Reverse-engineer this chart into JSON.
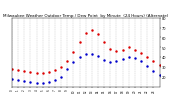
{
  "title": "Milwaukee Weather Outdoor Temp / Dew Point  by Minute  (24 Hours) (Alternate)",
  "title_fontsize": 3.0,
  "bg_color": "#ffffff",
  "plot_bg": "#ffffff",
  "grid_color": "#aaaaaa",
  "temp_color": "#dd0000",
  "dew_color": "#0000cc",
  "ylim": [
    10,
    80
  ],
  "xlim": [
    0,
    1440
  ],
  "yticks": [
    20,
    30,
    40,
    50,
    60,
    70,
    80
  ],
  "ytick_labels": [
    "20",
    "30",
    "40",
    "50",
    "60",
    "70",
    "80"
  ],
  "xtick_hours": [
    0,
    1,
    2,
    3,
    4,
    5,
    6,
    7,
    8,
    9,
    10,
    11,
    12,
    13,
    14,
    15,
    16,
    17,
    18,
    19,
    20,
    21,
    22,
    23
  ],
  "temp_x": [
    0,
    60,
    120,
    180,
    240,
    300,
    360,
    420,
    480,
    540,
    600,
    660,
    720,
    780,
    840,
    900,
    960,
    1020,
    1080,
    1140,
    1200,
    1260,
    1320,
    1380,
    1440
  ],
  "temp_y": [
    28,
    27,
    26,
    25,
    24,
    24,
    25,
    27,
    30,
    36,
    45,
    55,
    65,
    68,
    64,
    55,
    48,
    46,
    47,
    50,
    47,
    44,
    40,
    36,
    32
  ],
  "dew_x": [
    0,
    60,
    120,
    180,
    240,
    300,
    360,
    420,
    480,
    540,
    600,
    660,
    720,
    780,
    840,
    900,
    960,
    1020,
    1080,
    1140,
    1200,
    1260,
    1320,
    1380,
    1440
  ],
  "dew_y": [
    18,
    17,
    16,
    15,
    14,
    14,
    15,
    17,
    20,
    28,
    35,
    40,
    43,
    43,
    41,
    37,
    35,
    36,
    38,
    40,
    39,
    36,
    31,
    26,
    22
  ]
}
